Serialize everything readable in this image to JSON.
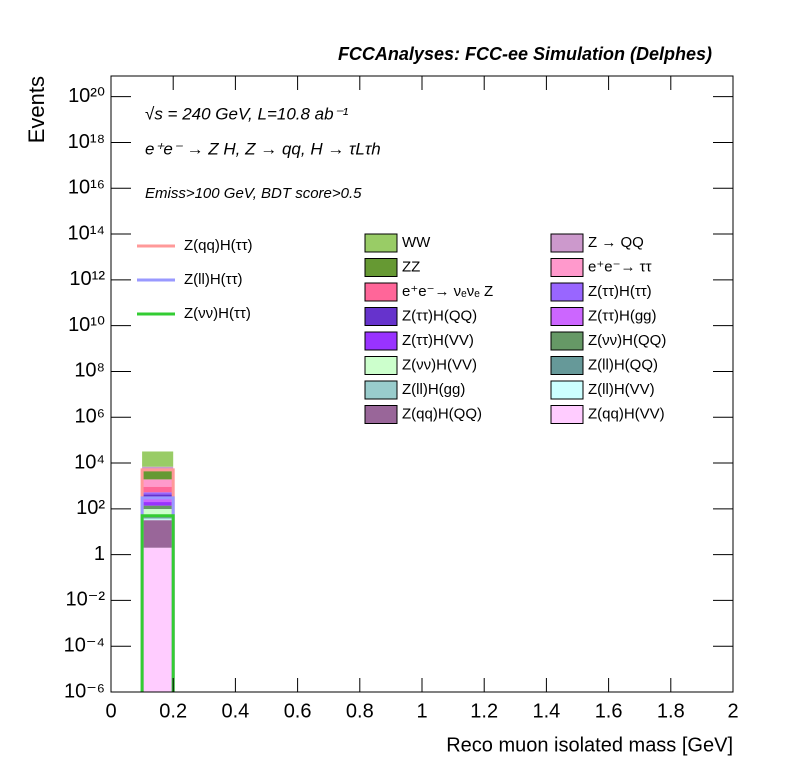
{
  "chart_data": {
    "type": "histogram",
    "title": "FCCAnalyses: FCC-ee Simulation (Delphes)",
    "annotations": [
      "√s = 240 GeV, L=10.8 ab⁻¹",
      "e⁺e⁻ → Z H, Z → qq, H → τLτh",
      "Emiss>100 GeV, BDT score>0.5"
    ],
    "x_label": "Reco muon isolated mass [GeV]",
    "y_label": "Events",
    "log_y": true,
    "stacked": true,
    "bins": [
      0.1,
      0.2
    ],
    "xlim": [
      0,
      2
    ],
    "xticks": [
      0,
      0.2,
      0.4,
      0.6,
      0.8,
      1,
      1.2,
      1.4,
      1.6,
      1.8,
      2
    ],
    "ylim": [
      1e-06,
      8e+20
    ],
    "yticks": [
      {
        "value": 1e-06,
        "label": "10⁻⁶"
      },
      {
        "value": 0.0001,
        "label": "10⁻⁴"
      },
      {
        "value": 0.01,
        "label": "10⁻²"
      },
      1,
      {
        "value": 100.0,
        "label": "10²"
      },
      {
        "value": 10000.0,
        "label": "10⁴"
      },
      {
        "value": 1000000.0,
        "label": "10⁶"
      },
      {
        "value": 100000000.0,
        "label": "10⁸"
      },
      {
        "value": 10000000000.0,
        "label": "10¹⁰"
      },
      {
        "value": 1000000000000.0,
        "label": "10¹²"
      },
      {
        "value": 100000000000000.0,
        "label": "10¹⁴"
      },
      {
        "value": 1e+16,
        "label": "10¹⁶"
      },
      {
        "value": 1e+18,
        "label": "10¹⁸"
      },
      {
        "value": 1e+20,
        "label": "10²⁰"
      }
    ],
    "series": [
      {
        "name": "WW",
        "color": "#99cc66",
        "values": [
          25000
        ]
      },
      {
        "name": "Z → QQ",
        "color": "#cc99cc",
        "values": [
          2000
        ]
      },
      {
        "name": "ZZ",
        "color": "#669933",
        "values": [
          3000
        ]
      },
      {
        "name": "e⁺e⁻→ ττ",
        "color": "#ff99cc",
        "values": [
          1000
        ]
      },
      {
        "name": "e⁺e⁻→ νₑνₑ Z",
        "color": "#ff6699",
        "values": [
          400
        ]
      },
      {
        "name": "Z(ττ)H(ττ)",
        "color": "#9966ff",
        "values": [
          100
        ]
      },
      {
        "name": "Z(ττ)H(QQ)",
        "color": "#6633cc",
        "values": [
          150
        ]
      },
      {
        "name": "Z(ττ)H(gg)",
        "color": "#cc66ff",
        "values": [
          80
        ]
      },
      {
        "name": "Z(ττ)H(VV)",
        "color": "#9933ff",
        "values": [
          60
        ]
      },
      {
        "name": "Z(νν)H(QQ)",
        "color": "#669966",
        "values": [
          40
        ]
      },
      {
        "name": "Z(νν)H(VV)",
        "color": "#ccffcc",
        "values": [
          50
        ]
      },
      {
        "name": "Z(ll)H(QQ)",
        "color": "#669999",
        "values": [
          8
        ]
      },
      {
        "name": "Z(ll)H(gg)",
        "color": "#99cccc",
        "values": [
          5
        ]
      },
      {
        "name": "Z(ll)H(VV)",
        "color": "#ccffff",
        "values": [
          3
        ]
      },
      {
        "name": "Z(qq)H(QQ)",
        "color": "#996699",
        "values": [
          30
        ]
      },
      {
        "name": "Z(qq)H(VV)",
        "color": "#ffccff",
        "values": [
          2
        ]
      }
    ],
    "signals": [
      {
        "name": "Z(qq)H(ττ)",
        "color": "#ff9999",
        "values": [
          5000
        ]
      },
      {
        "name": "Z(ll)H(ττ)",
        "color": "#9999ff",
        "values": [
          300
        ]
      },
      {
        "name": "Z(νν)H(ττ)",
        "color": "#33cc33",
        "values": [
          50
        ]
      }
    ]
  }
}
